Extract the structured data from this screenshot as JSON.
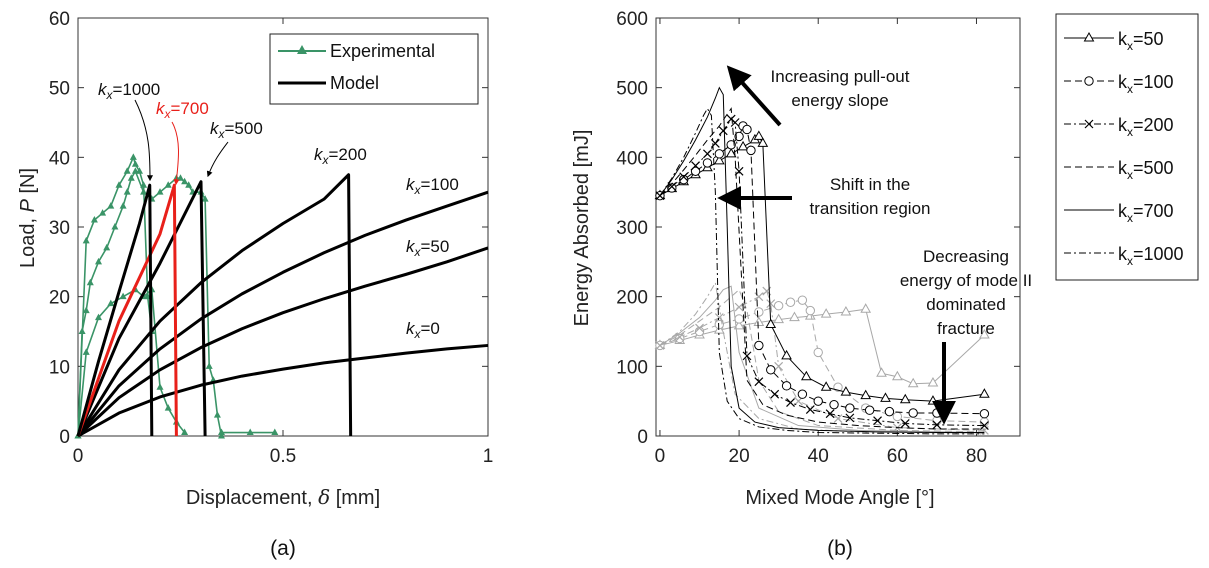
{
  "chart_data": [
    {
      "type": "line",
      "caption": "(a)",
      "xlabel_prefix": "Displacement,",
      "xlabel_symbol": "δ",
      "xlabel_unit": "[mm]",
      "ylabel_prefix": "Load,",
      "ylabel_symbol": "P",
      "ylabel_unit": "[N]",
      "xlim": [
        0,
        1
      ],
      "ylim": [
        0,
        60
      ],
      "xticks": [
        "0",
        "0.5",
        "1"
      ],
      "yticks": [
        "0",
        "10",
        "20",
        "30",
        "40",
        "50",
        "60"
      ],
      "legend": {
        "position": "top-right",
        "entries": [
          "Experimental",
          "Model"
        ]
      },
      "colors": {
        "experimental": "#3a9467",
        "model": "#000000",
        "highlight": "#e8201a"
      },
      "model_series": [
        {
          "name": "k_x=0",
          "x": [
            0,
            0.1,
            0.2,
            0.3,
            0.4,
            0.5,
            0.6,
            0.7,
            0.8,
            0.9,
            1.0
          ],
          "y": [
            0,
            3.3,
            5.6,
            7.3,
            8.6,
            9.6,
            10.5,
            11.2,
            11.9,
            12.5,
            13.0
          ]
        },
        {
          "name": "k_x=50",
          "x": [
            0,
            0.1,
            0.2,
            0.3,
            0.4,
            0.5,
            0.6,
            0.7,
            0.8,
            0.9,
            1.0
          ],
          "y": [
            0,
            5.5,
            9.5,
            12.7,
            15.4,
            17.7,
            19.7,
            21.5,
            23.2,
            25.0,
            27.0
          ]
        },
        {
          "name": "k_x=100",
          "x": [
            0,
            0.1,
            0.2,
            0.3,
            0.4,
            0.5,
            0.6,
            0.7,
            0.8,
            0.9,
            1.0
          ],
          "y": [
            0,
            7.2,
            12.5,
            16.8,
            20.4,
            23.5,
            26.3,
            28.8,
            31.0,
            33.0,
            35.0
          ]
        },
        {
          "name": "k_x=200",
          "x": [
            0,
            0.1,
            0.2,
            0.3,
            0.4,
            0.5,
            0.6,
            0.66,
            0.665
          ],
          "y": [
            0,
            9.5,
            16.5,
            22.0,
            26.6,
            30.5,
            34.0,
            37.5,
            0
          ]
        },
        {
          "name": "k_x=500",
          "x": [
            0,
            0.1,
            0.2,
            0.3,
            0.31
          ],
          "y": [
            0,
            14.0,
            24.8,
            36.5,
            0
          ]
        },
        {
          "name": "k_x=700",
          "x": [
            0,
            0.1,
            0.2,
            0.235,
            0.24
          ],
          "y": [
            0,
            16.5,
            29.0,
            36.0,
            0
          ]
        },
        {
          "name": "k_x=1000",
          "x": [
            0,
            0.05,
            0.1,
            0.15,
            0.175,
            0.18
          ],
          "y": [
            0,
            10.7,
            20.7,
            30.5,
            36.0,
            0
          ]
        }
      ],
      "experimental_series": [
        {
          "x": [
            0,
            0.01,
            0.02,
            0.03,
            0.05,
            0.07,
            0.09,
            0.11,
            0.12,
            0.13,
            0.14,
            0.16,
            0.18,
            0.2,
            0.22,
            0.24,
            0.25,
            0.26,
            0.27,
            0.28,
            0.3,
            0.31,
            0.32,
            0.33,
            0.34,
            0.35
          ],
          "y": [
            0,
            15,
            18,
            22,
            25,
            27,
            30,
            33,
            35,
            37,
            38,
            35,
            34,
            35,
            36,
            37,
            37,
            36.5,
            36,
            35,
            35,
            34,
            10,
            8,
            3,
            0
          ]
        },
        {
          "x": [
            0,
            0.02,
            0.04,
            0.06,
            0.08,
            0.1,
            0.12,
            0.135,
            0.14,
            0.15,
            0.16,
            0.17,
            0.18
          ],
          "y": [
            0,
            28,
            31,
            32,
            33,
            36,
            38,
            40,
            39,
            38,
            36,
            20,
            15
          ]
        },
        {
          "x": [
            0,
            0.02,
            0.05,
            0.08,
            0.11,
            0.14,
            0.16,
            0.18,
            0.2,
            0.22,
            0.24,
            0.26
          ],
          "y": [
            0,
            12,
            17,
            19,
            20,
            21,
            20,
            21,
            7,
            4,
            2,
            0.5
          ]
        },
        {
          "x": [
            0.35,
            0.42,
            0.48
          ],
          "y": [
            0.5,
            0.5,
            0.5
          ]
        }
      ],
      "curve_labels": [
        {
          "text": "=1000",
          "sub": "x",
          "color": "#111111"
        },
        {
          "text": "=700",
          "sub": "x",
          "color": "#e8201a"
        },
        {
          "text": "=500",
          "sub": "x",
          "color": "#111111"
        },
        {
          "text": "=200",
          "sub": "x",
          "color": "#111111"
        },
        {
          "text": "=100",
          "sub": "x",
          "color": "#111111"
        },
        {
          "text": "=50",
          "sub": "x",
          "color": "#111111"
        },
        {
          "text": "=0",
          "sub": "x",
          "color": "#111111"
        }
      ]
    },
    {
      "type": "line",
      "caption": "(b)",
      "xlabel": "Mixed Mode Angle [°]",
      "ylabel": "Energy Absorbed [mJ]",
      "xlim": [
        -1,
        91
      ],
      "ylim": [
        0,
        600
      ],
      "xticks": [
        0,
        20,
        40,
        60,
        80
      ],
      "yticks": [
        0,
        100,
        200,
        300,
        400,
        500,
        600
      ],
      "legend": {
        "position": "outside-right",
        "entries": [
          "k_x=50",
          "k_x=100",
          "k_x=200",
          "k_x=500",
          "k_x=700",
          "k_x=1000"
        ],
        "sub": "x",
        "values": [
          "=50",
          "=100",
          "=200",
          "=500",
          "=700",
          "=1000"
        ]
      },
      "annotations": [
        {
          "lines": [
            "Increasing pull-out",
            "energy slope"
          ]
        },
        {
          "lines": [
            "Shift in the",
            "transition region"
          ]
        },
        {
          "lines": [
            "Decreasing",
            "energy of mode II",
            "dominated",
            "fracture"
          ]
        }
      ],
      "colors": {
        "main": "#000000",
        "secondary": "#a8a8a8"
      },
      "series": [
        {
          "name": "k_x=50",
          "marker": "triangle",
          "dash": "solid",
          "x": [
            0,
            3,
            6,
            9,
            12,
            15,
            18,
            21,
            24,
            25,
            26,
            28,
            32,
            37,
            42,
            47,
            52,
            57,
            62,
            69,
            82
          ],
          "y": [
            345,
            355,
            365,
            375,
            385,
            395,
            405,
            415,
            425,
            430,
            420,
            160,
            115,
            85,
            70,
            63,
            58,
            54,
            52,
            50,
            60
          ]
        },
        {
          "name": "k_x=100",
          "marker": "circle",
          "dash": "dashed",
          "x": [
            0,
            3,
            6,
            9,
            12,
            15,
            18,
            20,
            21,
            22,
            23,
            25,
            28,
            32,
            36,
            40,
            44,
            48,
            53,
            58,
            64,
            70,
            82
          ],
          "y": [
            345,
            356,
            368,
            380,
            392,
            405,
            418,
            430,
            445,
            440,
            410,
            130,
            95,
            72,
            60,
            50,
            45,
            40,
            37,
            35,
            33,
            33,
            32
          ]
        },
        {
          "name": "k_x=200",
          "marker": "cross",
          "dash": "dashdot",
          "x": [
            0,
            3,
            6,
            9,
            12,
            14,
            16,
            18,
            19,
            20,
            22,
            25,
            29,
            33,
            38,
            43,
            48,
            55,
            62,
            70,
            82
          ],
          "y": [
            345,
            358,
            372,
            388,
            405,
            420,
            438,
            455,
            450,
            380,
            115,
            78,
            60,
            48,
            38,
            32,
            26,
            22,
            18,
            16,
            15
          ]
        },
        {
          "name": "k_x=500",
          "marker": "none",
          "dash": "dashed",
          "x": [
            0,
            3,
            6,
            9,
            12,
            15,
            17,
            18,
            19,
            22,
            26,
            32,
            40,
            50,
            60,
            70,
            82
          ],
          "y": [
            345,
            362,
            382,
            403,
            425,
            445,
            462,
            470,
            400,
            80,
            45,
            30,
            20,
            15,
            12,
            10,
            10
          ]
        },
        {
          "name": "k_x=700",
          "marker": "none",
          "dash": "solid",
          "x": [
            0,
            3,
            6,
            9,
            12,
            14,
            15,
            16,
            17,
            18,
            20,
            24,
            30,
            40,
            55,
            70,
            82
          ],
          "y": [
            345,
            368,
            395,
            425,
            458,
            485,
            500,
            490,
            300,
            100,
            40,
            20,
            12,
            8,
            6,
            5,
            5
          ]
        },
        {
          "name": "k_x=1000",
          "marker": "none",
          "dash": "dashdot",
          "x": [
            0,
            3,
            6,
            9,
            11,
            12,
            13,
            14,
            15,
            17,
            20,
            25,
            32,
            40,
            55,
            70,
            82
          ],
          "y": [
            345,
            370,
            400,
            435,
            460,
            470,
            460,
            350,
            120,
            50,
            25,
            13,
            8,
            5,
            4,
            3,
            3
          ]
        }
      ],
      "secondary_series": [
        {
          "marker": "triangle",
          "dash": "solid",
          "x": [
            0,
            5,
            10,
            15,
            20,
            25,
            30,
            34,
            38,
            42,
            47,
            52,
            56,
            60,
            64,
            69,
            82
          ],
          "y": [
            130,
            137,
            145,
            152,
            158,
            163,
            167,
            170,
            172,
            175,
            178,
            182,
            90,
            85,
            75,
            76,
            145
          ]
        },
        {
          "marker": "circle",
          "dash": "dashed",
          "x": [
            0,
            5,
            10,
            15,
            20,
            25,
            30,
            33,
            36,
            38,
            40,
            45,
            52,
            60,
            70,
            82
          ],
          "y": [
            130,
            140,
            150,
            160,
            168,
            178,
            187,
            192,
            195,
            180,
            120,
            70,
            40,
            28,
            22,
            20
          ]
        },
        {
          "marker": "cross",
          "dash": "dashdot",
          "x": [
            0,
            5,
            10,
            15,
            20,
            25,
            27,
            28,
            30,
            35,
            45,
            60,
            82
          ],
          "y": [
            130,
            142,
            155,
            170,
            185,
            200,
            208,
            190,
            100,
            50,
            25,
            12,
            8
          ]
        },
        {
          "marker": "none",
          "dash": "dashed",
          "x": [
            0,
            5,
            10,
            15,
            18,
            20,
            22,
            25,
            30,
            40,
            60,
            82
          ],
          "y": [
            130,
            145,
            165,
            185,
            200,
            210,
            180,
            80,
            35,
            15,
            8,
            6
          ]
        },
        {
          "marker": "none",
          "dash": "solid",
          "x": [
            0,
            5,
            10,
            14,
            16,
            18,
            20,
            25,
            35,
            50,
            82
          ],
          "y": [
            130,
            148,
            170,
            195,
            210,
            215,
            120,
            40,
            15,
            8,
            5
          ]
        },
        {
          "marker": "none",
          "dash": "dashdot",
          "x": [
            0,
            5,
            9,
            12,
            14,
            16,
            19,
            25,
            35,
            50,
            82
          ],
          "y": [
            130,
            150,
            175,
            200,
            220,
            150,
            60,
            25,
            10,
            6,
            4
          ]
        }
      ]
    }
  ]
}
